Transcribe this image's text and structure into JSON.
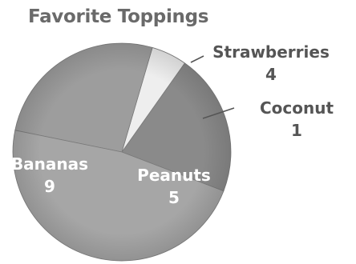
{
  "chart_data": {
    "type": "pie",
    "title": "Favorite Toppings",
    "slices": [
      {
        "label": "Strawberries",
        "value": 4
      },
      {
        "label": "Coconut",
        "value": 1
      },
      {
        "label": "Peanuts",
        "value": 5
      },
      {
        "label": "Bananas",
        "value": 9
      }
    ],
    "colors": {
      "Strawberries": "#8a8a8a",
      "Coconut": "#eeeeee",
      "Peanuts": "#9d9d9d",
      "Bananas": "#a6a6a6",
      "label_dark": "#555555",
      "label_light": "#ffffff",
      "title": "#6a6a6a"
    }
  }
}
